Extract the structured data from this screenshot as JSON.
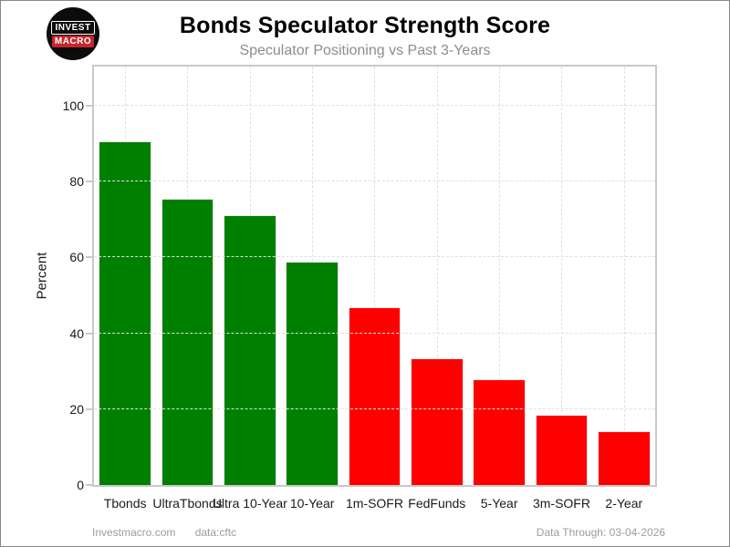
{
  "brand": {
    "line1": "INVEST",
    "line2": "MACRO",
    "circle_color": "#0c0c0c",
    "accent_color": "#c4262b"
  },
  "chart_data": {
    "type": "bar",
    "title": "Bonds Speculator Strength Score",
    "subtitle": "Speculator Positioning vs Past 3-Years",
    "xlabel": "",
    "ylabel": "Percent",
    "categories": [
      "Tbonds",
      "UltraTbonds",
      "Ultra 10-Year",
      "10-Year",
      "1m-SOFR",
      "FedFunds",
      "5-Year",
      "3m-SOFR",
      "2-Year"
    ],
    "values": [
      90.6,
      75.4,
      71.1,
      58.8,
      46.9,
      33.3,
      27.9,
      18.4,
      14.3
    ],
    "bar_colors": [
      "#008000",
      "#008000",
      "#008000",
      "#008000",
      "#ff0000",
      "#ff0000",
      "#ff0000",
      "#ff0000",
      "#ff0000"
    ],
    "positive_color": "#008000",
    "negative_color": "#ff0000",
    "yticks": [
      0,
      20,
      40,
      60,
      80,
      100
    ],
    "ylim": [
      0,
      110.3
    ],
    "grid": "dashed",
    "legend": "none"
  },
  "footer": {
    "site": "Investmacro.com",
    "source": "data:cftc",
    "data_through": "Data Through: 03-04-2026"
  }
}
